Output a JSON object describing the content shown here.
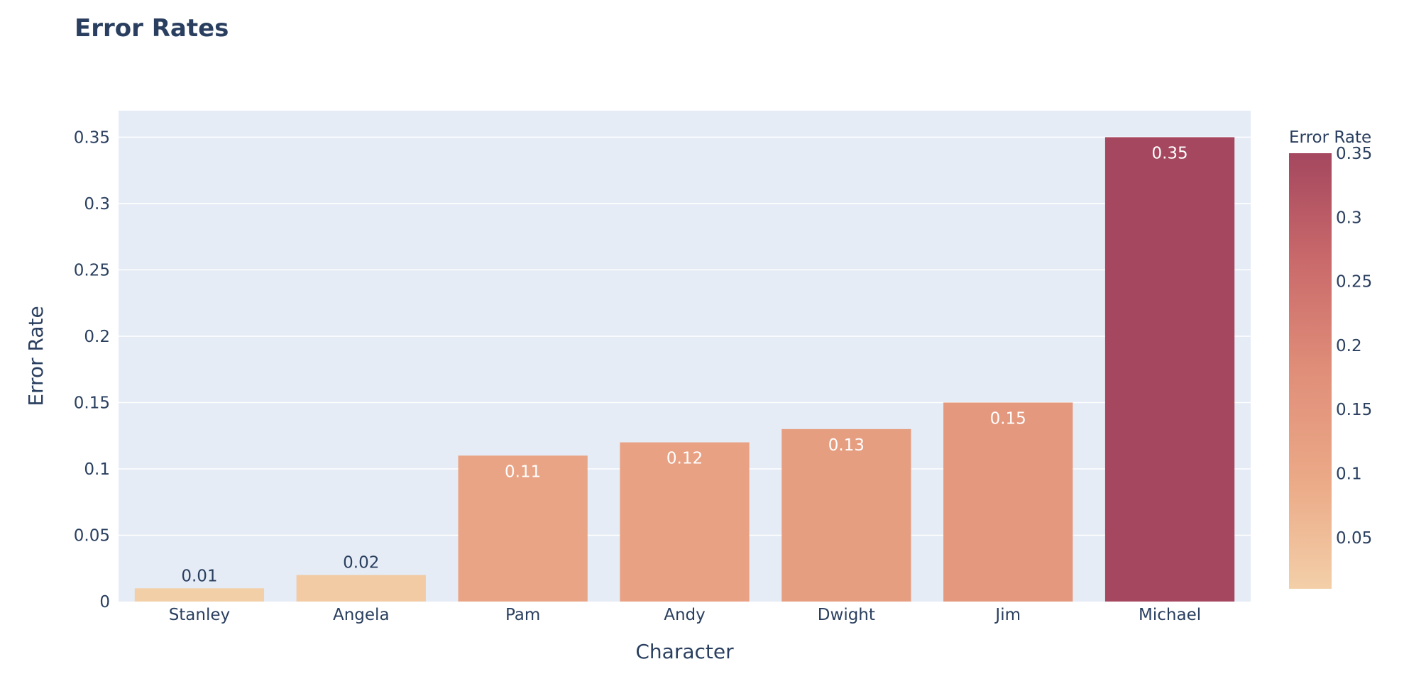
{
  "chart_data": {
    "type": "bar",
    "title": "Error Rates",
    "xlabel": "Character",
    "ylabel": "Error Rate",
    "categories": [
      "Stanley",
      "Angela",
      "Pam",
      "Andy",
      "Dwight",
      "Jim",
      "Michael"
    ],
    "values": [
      0.01,
      0.02,
      0.11,
      0.12,
      0.13,
      0.15,
      0.35
    ],
    "value_labels": [
      "0.01",
      "0.02",
      "0.11",
      "0.12",
      "0.13",
      "0.15",
      "0.35"
    ],
    "ylim": [
      0,
      0.37
    ],
    "yticks": [
      0,
      0.05,
      0.1,
      0.15,
      0.2,
      0.25,
      0.3,
      0.35
    ],
    "ytick_labels": [
      "0",
      "0.05",
      "0.1",
      "0.15",
      "0.2",
      "0.25",
      "0.3",
      "0.35"
    ],
    "grid": true,
    "plot_background": "#e5ecf6",
    "colorbar": {
      "title": "Error Rate",
      "range": [
        0.01,
        0.35
      ],
      "ticks": [
        0.05,
        0.1,
        0.15,
        0.2,
        0.25,
        0.3,
        0.35
      ],
      "tick_labels": [
        "0.05",
        "0.1",
        "0.15",
        "0.2",
        "0.25",
        "0.3",
        "0.35"
      ],
      "colorscale": [
        "#f3cfa8",
        "#eba987",
        "#e08e79",
        "#ca6a6b",
        "#a5475f"
      ],
      "placement": "right"
    }
  }
}
